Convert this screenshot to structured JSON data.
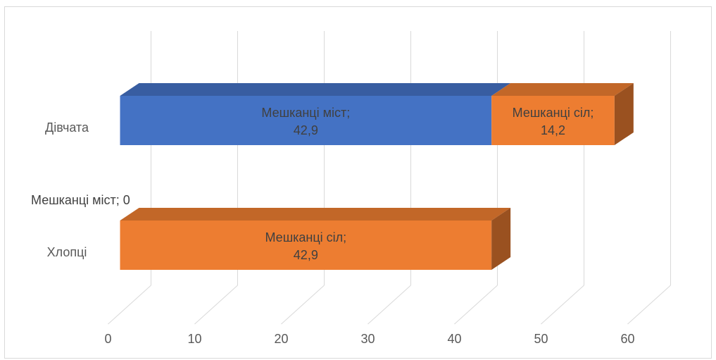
{
  "chart_data": {
    "type": "bar",
    "orientation": "horizontal",
    "stacked": true,
    "three_d": true,
    "categories": [
      "Хлопці",
      "Дівчата"
    ],
    "series": [
      {
        "name": "Мешканці міст",
        "values": [
          0,
          42.9
        ],
        "color": "#4472C4",
        "labels": [
          "Мешканці міст; 0",
          "Мешканці міст;|42,9"
        ]
      },
      {
        "name": "Мешканці сіл",
        "values": [
          42.9,
          14.2
        ],
        "color": "#ED7D31",
        "labels": [
          "Мешканці сіл;|42,9",
          "Мешканці сіл;|14,2"
        ]
      }
    ],
    "xlim": [
      0,
      60
    ],
    "x_ticks": [
      0,
      10,
      20,
      30,
      40,
      50,
      60
    ],
    "x_tick_labels": [
      "0",
      "10",
      "20",
      "30",
      "40",
      "50",
      "60"
    ],
    "grid": true,
    "legend": "none",
    "title": "",
    "xlabel": "",
    "ylabel": ""
  }
}
